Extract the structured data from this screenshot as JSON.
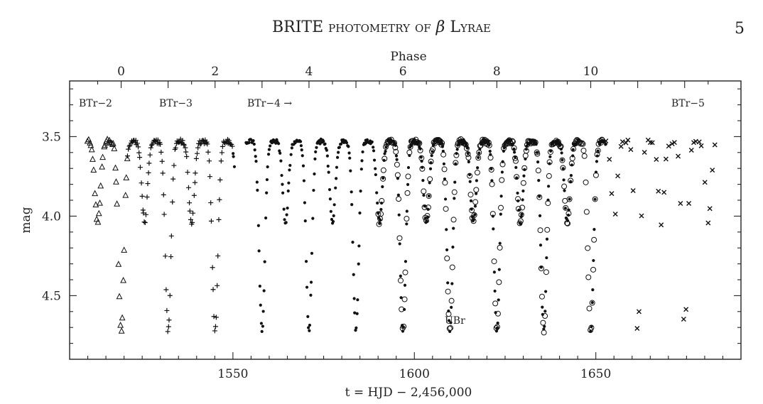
{
  "header": {
    "title_prefix": "BRITE ",
    "title_smallcaps": "photometry of ",
    "title_greek": "β",
    "title_suffix": " Lyrae",
    "page_number": "5"
  },
  "chart_data": {
    "type": "scatter",
    "title": "",
    "xlabel": "t = HJD − 2,456,000",
    "ylabel": "mag",
    "top_axis_label": "Phase",
    "xlim": [
      1505,
      1690
    ],
    "ylim": [
      3.15,
      4.9
    ],
    "y_inverted": true,
    "x_ticks": [
      "1550",
      "1600",
      "1650"
    ],
    "y_ticks": [
      "3.5",
      "4.0",
      "4.5"
    ],
    "phase_ticks": [
      "0",
      "2",
      "4",
      "6",
      "8",
      "10"
    ],
    "annotations": {
      "btr2": "BTr−2",
      "btr3": "BTr−3",
      "btr4": "BTr−4 →",
      "btr5": "BTr−5",
      "ubr": "UBr"
    },
    "light_curve": {
      "period_days": 12.94,
      "t0_primary": 1519.2,
      "max_mag": 3.53,
      "primary_min_mag": 4.72,
      "secondary_min_mag": 4.04
    },
    "series": [
      {
        "name": "BTr-2",
        "marker": "triangle",
        "x_range": [
          1510,
          1521
        ]
      },
      {
        "name": "BTr-3",
        "marker": "plus",
        "x_range": [
          1521,
          1550
        ]
      },
      {
        "name": "BTr-4",
        "marker": "dot",
        "x_range": [
          1550,
          1653
        ]
      },
      {
        "name": "UBr",
        "marker": "circle",
        "x_range": [
          1590,
          1652
        ]
      },
      {
        "name": "BTr-5",
        "marker": "cross",
        "x_range": [
          1653,
          1683
        ]
      }
    ]
  }
}
